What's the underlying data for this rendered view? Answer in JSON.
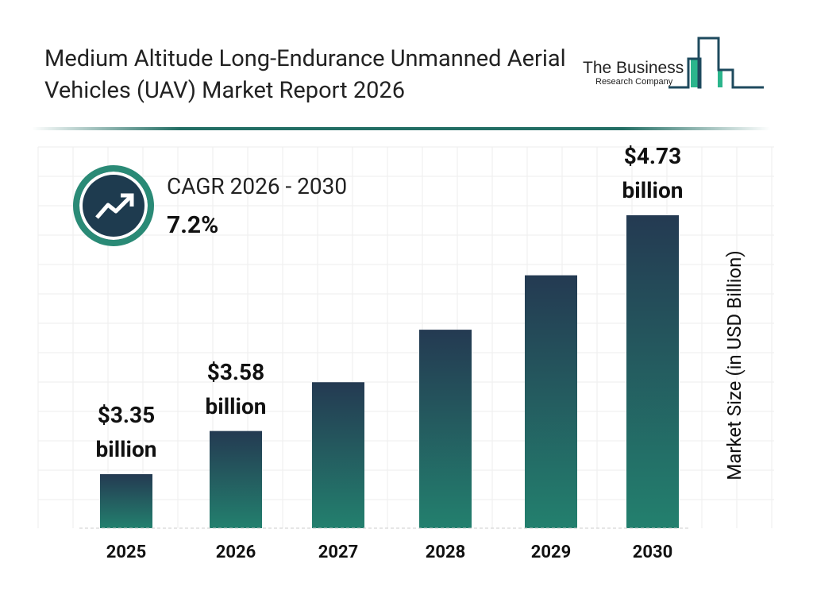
{
  "title": "Medium Altitude Long-Endurance Unmanned Aerial Vehicles (UAV) Market Report 2026",
  "logo": {
    "line1": "The Business",
    "line2": "Research Company"
  },
  "cagr": {
    "label": "CAGR 2026 - 2030",
    "value": "7.2%",
    "icon": "trending-up-icon"
  },
  "colors": {
    "bar_top": "#243a52",
    "bar_bottom": "#23806e",
    "accent": "#236e64"
  },
  "chart_data": {
    "type": "bar",
    "categories": [
      "2025",
      "2026",
      "2027",
      "2028",
      "2029",
      "2030"
    ],
    "values": [
      3.35,
      3.58,
      3.84,
      4.12,
      4.41,
      4.73
    ],
    "data_labels": [
      {
        "index": 0,
        "value": "$3.35",
        "unit": "billion"
      },
      {
        "index": 1,
        "value": "$3.58",
        "unit": "billion"
      },
      {
        "index": 5,
        "value": "$4.73",
        "unit": "billion"
      }
    ],
    "ylabel": "Market Size (in USD Billion)",
    "xlabel": "",
    "grid": true
  }
}
